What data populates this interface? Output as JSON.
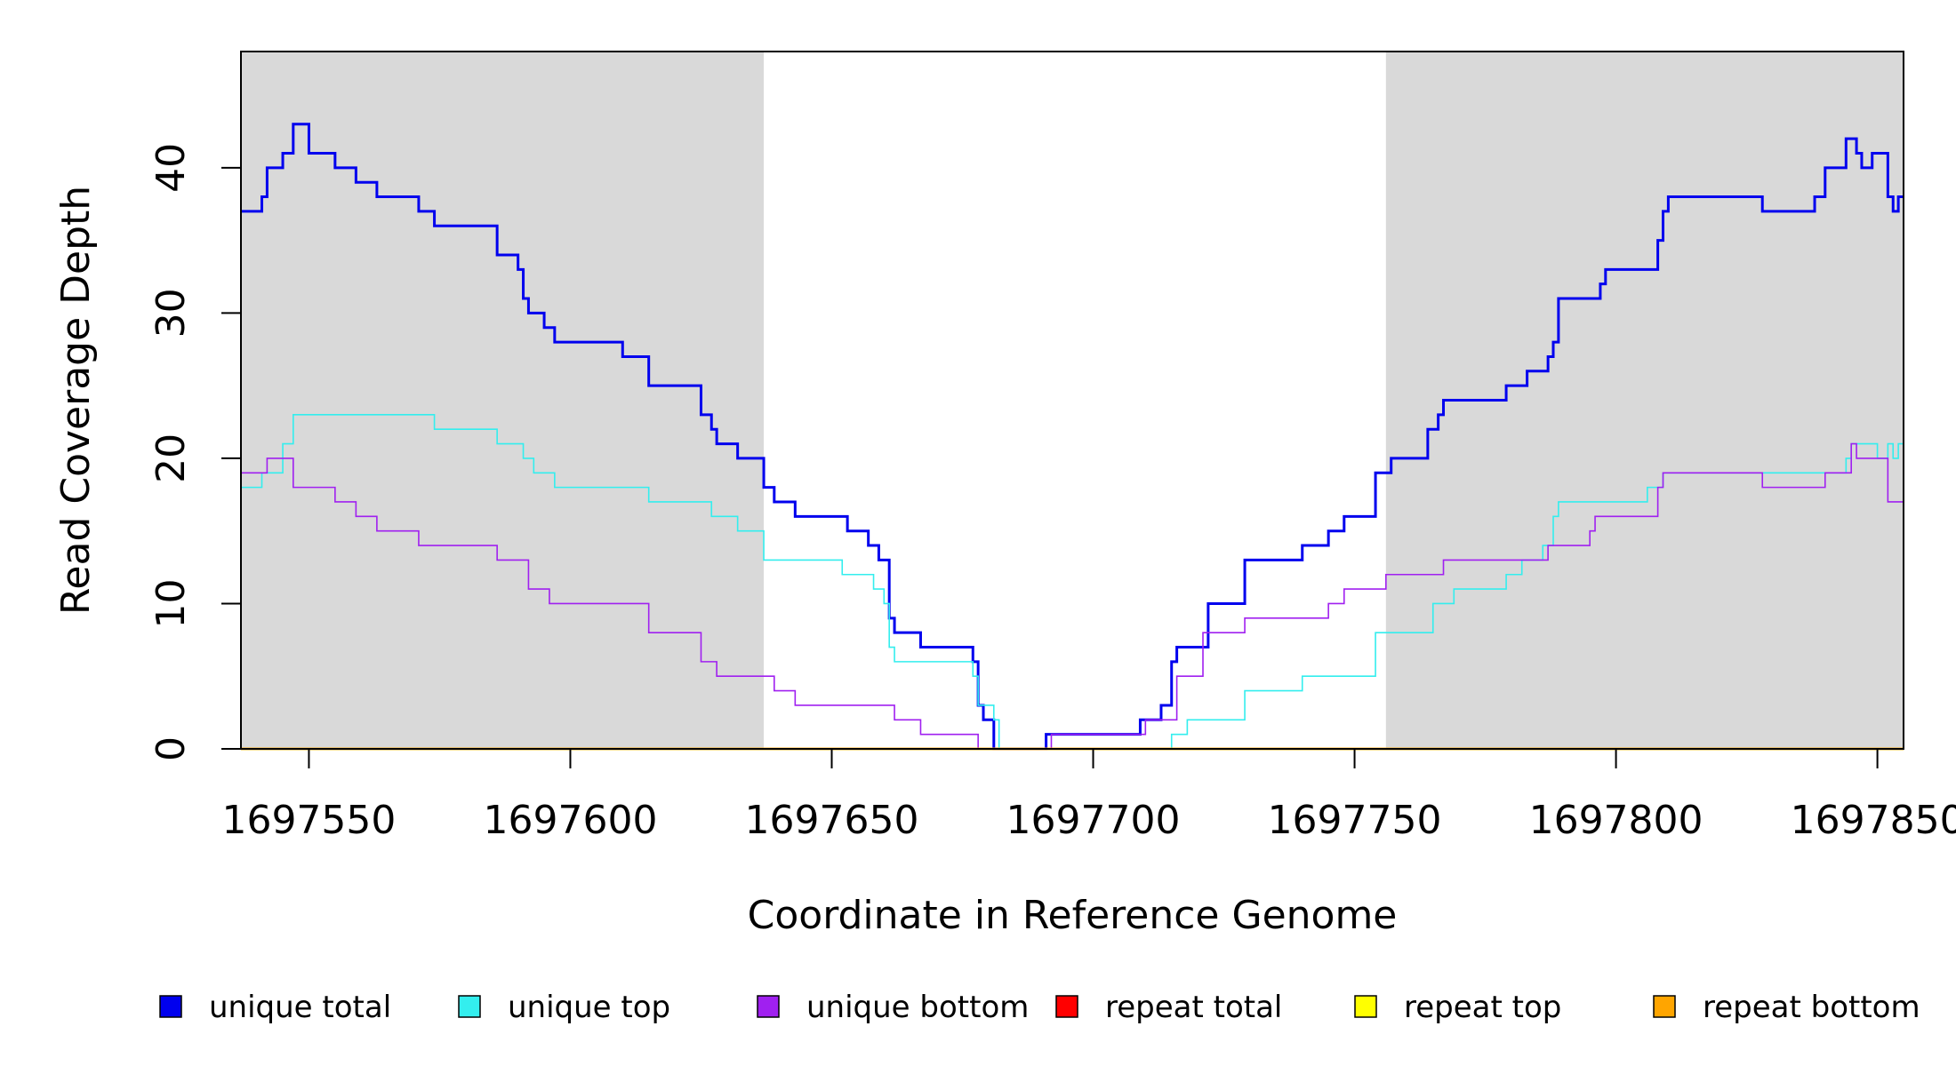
{
  "chart_data": {
    "type": "line",
    "line_style": "step",
    "xlabel": "Coordinate in Reference Genome",
    "ylabel": "Read Coverage Depth",
    "xlim": [
      1697537,
      1697855
    ],
    "ylim": [
      0,
      48
    ],
    "x_ticks": [
      1697550,
      1697600,
      1697650,
      1697700,
      1697750,
      1697800,
      1697850
    ],
    "y_ticks": [
      0,
      10,
      20,
      30,
      40
    ],
    "grid": false,
    "shaded_regions": [
      {
        "x_start": 1697537,
        "x_end": 1697637,
        "color": "#d9d9d9"
      },
      {
        "x_start": 1697756,
        "x_end": 1697855,
        "color": "#d9d9d9"
      }
    ],
    "legend_position": "bottom",
    "series": [
      {
        "name": "unique total",
        "color": "#0000ee",
        "x": [
          1697537,
          1697541,
          1697542,
          1697545,
          1697547,
          1697550,
          1697555,
          1697559,
          1697563,
          1697571,
          1697574,
          1697586,
          1697590,
          1697591,
          1697592,
          1697595,
          1697597,
          1697610,
          1697615,
          1697625,
          1697627,
          1697628,
          1697632,
          1697637,
          1697639,
          1697643,
          1697653,
          1697657,
          1697659,
          1697661,
          1697662,
          1697663,
          1697667,
          1697677,
          1697678,
          1697679,
          1697681,
          1697682,
          1697691,
          1697709,
          1697711,
          1697713,
          1697715,
          1697716,
          1697718,
          1697722,
          1697729,
          1697740,
          1697745,
          1697748,
          1697754,
          1697757,
          1697764,
          1697766,
          1697767,
          1697768,
          1697779,
          1697783,
          1697787,
          1697788,
          1697789,
          1697797,
          1697798,
          1697808,
          1697809,
          1697810,
          1697828,
          1697838,
          1697840,
          1697844,
          1697846,
          1697847,
          1697849,
          1697852,
          1697853,
          1697854,
          1697855
        ],
        "y": [
          37,
          38,
          40,
          41,
          43,
          41,
          40,
          39,
          38,
          37,
          36,
          34,
          33,
          31,
          30,
          29,
          28,
          27,
          25,
          23,
          22,
          21,
          20,
          18,
          17,
          16,
          15,
          14,
          13,
          9,
          8,
          8,
          7,
          6,
          3,
          2,
          0,
          0,
          1,
          2,
          2,
          3,
          6,
          7,
          7,
          10,
          13,
          14,
          15,
          16,
          19,
          20,
          22,
          23,
          24,
          24,
          25,
          26,
          27,
          28,
          31,
          32,
          33,
          35,
          37,
          38,
          37,
          38,
          40,
          42,
          41,
          40,
          41,
          38,
          37,
          38,
          38
        ]
      },
      {
        "name": "unique top",
        "color": "#33eeee",
        "x": [
          1697537,
          1697541,
          1697545,
          1697547,
          1697574,
          1697586,
          1697591,
          1697593,
          1697597,
          1697615,
          1697627,
          1697632,
          1697637,
          1697652,
          1697658,
          1697660,
          1697661,
          1697662,
          1697663,
          1697677,
          1697678,
          1697681,
          1697682,
          1697715,
          1697718,
          1697720,
          1697729,
          1697740,
          1697754,
          1697765,
          1697769,
          1697779,
          1697782,
          1697786,
          1697788,
          1697789,
          1697806,
          1697809,
          1697810,
          1697828,
          1697844,
          1697845,
          1697850,
          1697852,
          1697853,
          1697854,
          1697855
        ],
        "y": [
          18,
          19,
          21,
          23,
          22,
          21,
          20,
          19,
          18,
          17,
          16,
          15,
          13,
          12,
          11,
          10,
          7,
          6,
          6,
          5,
          3,
          2,
          0,
          1,
          2,
          2,
          4,
          5,
          8,
          10,
          11,
          12,
          13,
          14,
          16,
          17,
          18,
          19,
          19,
          19,
          20,
          21,
          20,
          21,
          20,
          21,
          21
        ]
      },
      {
        "name": "unique bottom",
        "color": "#a020f0",
        "x": [
          1697537,
          1697542,
          1697547,
          1697555,
          1697559,
          1697563,
          1697571,
          1697586,
          1697592,
          1697596,
          1697615,
          1697625,
          1697628,
          1697639,
          1697643,
          1697662,
          1697667,
          1697678,
          1697683,
          1697692,
          1697710,
          1697716,
          1697721,
          1697729,
          1697745,
          1697748,
          1697756,
          1697767,
          1697787,
          1697795,
          1697796,
          1697808,
          1697809,
          1697810,
          1697828,
          1697840,
          1697845,
          1697846,
          1697852,
          1697855
        ],
        "y": [
          19,
          20,
          18,
          17,
          16,
          15,
          14,
          13,
          11,
          10,
          8,
          6,
          5,
          4,
          3,
          2,
          1,
          0,
          0,
          1,
          2,
          5,
          8,
          9,
          10,
          11,
          12,
          13,
          14,
          15,
          16,
          18,
          19,
          19,
          18,
          19,
          21,
          20,
          17,
          17
        ]
      },
      {
        "name": "repeat total",
        "color": "#ff0000",
        "x": [
          1697537,
          1697855
        ],
        "y": [
          0,
          0
        ]
      },
      {
        "name": "repeat top",
        "color": "#ffff00",
        "x": [
          1697537,
          1697855
        ],
        "y": [
          0,
          0
        ]
      },
      {
        "name": "repeat bottom",
        "color": "#ffa500",
        "x": [
          1697537,
          1697855
        ],
        "y": [
          0,
          0
        ]
      }
    ]
  }
}
